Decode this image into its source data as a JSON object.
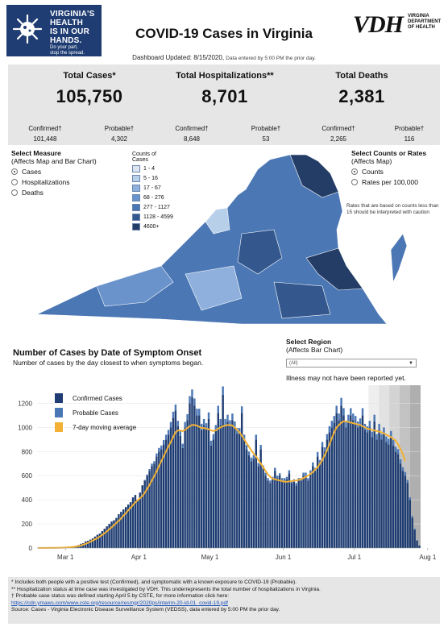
{
  "header": {
    "logo_lines": [
      "VIRGINIA'S",
      "HEALTH",
      "IS IN OUR",
      "HANDS."
    ],
    "logo_sub": [
      "Do your part,",
      "stop the spread."
    ],
    "title": "COVID-19 Cases in Virginia",
    "vdh_big": "VDH",
    "vdh_small": [
      "VIRGINIA",
      "DEPARTMENT",
      "OF HEALTH"
    ],
    "updated": "Dashboard Updated: 8/15/2020,",
    "updated_note": "Data entered by 5:00 PM the prior day."
  },
  "stats": [
    {
      "label": "Total Cases*",
      "value": "105,750",
      "sub": [
        {
          "label": "Confirmed†",
          "value": "101,448"
        },
        {
          "label": "Probable†",
          "value": "4,302"
        }
      ]
    },
    {
      "label": "Total Hospitalizations**",
      "value": "8,701",
      "sub": [
        {
          "label": "Confirmed†",
          "value": "8,648"
        },
        {
          "label": "Probable†",
          "value": "53"
        }
      ]
    },
    {
      "label": "Total Deaths",
      "value": "2,381",
      "sub": [
        {
          "label": "Confirmed†",
          "value": "2,265"
        },
        {
          "label": "Probable†",
          "value": "116"
        }
      ]
    }
  ],
  "measure": {
    "title": "Select Measure",
    "subtitle": "(Affects Map and Bar Chart)",
    "options": [
      "Cases",
      "Hospitalizations",
      "Deaths"
    ],
    "selected": "Cases"
  },
  "map_legend": {
    "title": "Counts of Cases",
    "bins": [
      {
        "label": "1 - 4",
        "color": "#dbe6f2"
      },
      {
        "label": "5 - 16",
        "color": "#b8cfe9"
      },
      {
        "label": "17 - 67",
        "color": "#8fb0dc"
      },
      {
        "label": "68 - 276",
        "color": "#6a93cc"
      },
      {
        "label": "277 - 1127",
        "color": "#4b77b4"
      },
      {
        "label": "1128 - 4599",
        "color": "#34588e"
      },
      {
        "label": "4600+",
        "color": "#243d66"
      }
    ]
  },
  "counts_rates": {
    "title": "Select Counts or Rates",
    "subtitle": "(Affects Map)",
    "options": [
      "Counts",
      "Rates per 100,000"
    ],
    "selected": "Counts",
    "caveat": "Rates that are based on counts less than 15 should be interpreted with caution"
  },
  "chart_section": {
    "title": "Number of Cases by Date of Symptom Onset",
    "subtitle": "Number of cases by the day closest to when symptoms began.",
    "region_title": "Select Region",
    "region_subtitle": "(Affects Bar Chart)",
    "region_value": "(All)",
    "illness_note": "Illness may not have been reported yet."
  },
  "chart_data": {
    "type": "bar",
    "title": "Number of Cases by Date of Symptom Onset",
    "xlabel": "",
    "ylabel": "",
    "ylim": [
      0,
      1350
    ],
    "yticks": [
      0,
      200,
      400,
      600,
      800,
      1000,
      1200
    ],
    "xticks": [
      "Mar 1",
      "Apr 1",
      "May 1",
      "Jun 1",
      "Jul 1",
      "Aug 1"
    ],
    "x_start": "Feb 17",
    "legend": [
      {
        "name": "Confirmed Cases",
        "color": "#1f3d72"
      },
      {
        "name": "Probable Cases",
        "color": "#4b77b4"
      },
      {
        "name": "7-day moving average",
        "color": "#f2b134"
      }
    ],
    "series": [
      {
        "name": "Confirmed Cases",
        "values": [
          2,
          0,
          1,
          2,
          1,
          3,
          2,
          2,
          3,
          5,
          4,
          6,
          8,
          10,
          12,
          15,
          20,
          25,
          35,
          40,
          55,
          60,
          70,
          80,
          95,
          110,
          120,
          140,
          160,
          180,
          200,
          220,
          230,
          250,
          280,
          300,
          320,
          340,
          360,
          380,
          420,
          440,
          400,
          460,
          520,
          560,
          600,
          640,
          680,
          700,
          760,
          800,
          820,
          860,
          900,
          940,
          1000,
          1080,
          1140,
          1010,
          930,
          830,
          1000,
          1060,
          1200,
          1250,
          1180,
          1100,
          1100,
          980,
          1020,
          990,
          1070,
          850,
          900,
          970,
          1120,
          1020,
          1270,
          1020,
          1050,
          1010,
          1060,
          1000,
          950,
          950,
          1120,
          900,
          820,
          770,
          720,
          740,
          900,
          680,
          820,
          660,
          600,
          560,
          540,
          570,
          640,
          580,
          600,
          560,
          560,
          570,
          620,
          540,
          550,
          520,
          560,
          560,
          600,
          600,
          560,
          620,
          680,
          640,
          760,
          700,
          840,
          800,
          900,
          960,
          1000,
          1040,
          1120,
          1060,
          1180,
          1100,
          1000,
          1050,
          1100,
          1060,
          1040,
          1000,
          1020,
          1100,
          980,
          960,
          1000,
          920,
          1050,
          900,
          980,
          900,
          950,
          880,
          860,
          920,
          850,
          800,
          780,
          700,
          640,
          600,
          540,
          400,
          250,
          150,
          60,
          20
        ]
      },
      {
        "name": "Probable Cases",
        "values": [
          0,
          0,
          0,
          0,
          0,
          0,
          0,
          0,
          0,
          0,
          0,
          0,
          0,
          0,
          0,
          0,
          0,
          0,
          0,
          0,
          0,
          0,
          0,
          0,
          0,
          0,
          0,
          0,
          0,
          0,
          0,
          0,
          0,
          0,
          0,
          0,
          0,
          0,
          0,
          0,
          0,
          0,
          0,
          0,
          0,
          5,
          10,
          15,
          20,
          20,
          25,
          30,
          30,
          35,
          40,
          40,
          45,
          50,
          50,
          45,
          40,
          35,
          45,
          50,
          60,
          65,
          60,
          55,
          55,
          50,
          50,
          45,
          55,
          40,
          45,
          50,
          60,
          50,
          70,
          50,
          55,
          50,
          55,
          50,
          45,
          45,
          55,
          40,
          35,
          30,
          30,
          30,
          40,
          25,
          35,
          25,
          25,
          20,
          20,
          20,
          25,
          20,
          20,
          20,
          20,
          20,
          25,
          20,
          20,
          20,
          20,
          20,
          25,
          25,
          20,
          25,
          30,
          25,
          35,
          30,
          40,
          35,
          45,
          50,
          55,
          55,
          60,
          55,
          65,
          60,
          50,
          55,
          60,
          55,
          55,
          50,
          55,
          60,
          50,
          50,
          55,
          45,
          55,
          45,
          50,
          45,
          50,
          45,
          45,
          50,
          45,
          40,
          40,
          35,
          30,
          30,
          25,
          20,
          15,
          10,
          5,
          0
        ]
      },
      {
        "name": "7-day moving average",
        "values": [
          1,
          1,
          1,
          1,
          1,
          2,
          2,
          2,
          2,
          3,
          3,
          4,
          5,
          7,
          8,
          10,
          13,
          17,
          22,
          28,
          35,
          43,
          52,
          62,
          72,
          83,
          95,
          108,
          122,
          138,
          155,
          172,
          190,
          208,
          226,
          246,
          268,
          290,
          312,
          334,
          356,
          378,
          396,
          412,
          432,
          458,
          490,
          524,
          560,
          596,
          636,
          680,
          722,
          762,
          802,
          842,
          880,
          920,
          960,
          975,
          975,
          970,
          980,
          995,
          1010,
          1020,
          1020,
          1015,
          1005,
          995,
          995,
          990,
          985,
          975,
          970,
          975,
          990,
          1000,
          1010,
          1015,
          1020,
          1020,
          1015,
          1000,
          980,
          960,
          930,
          900,
          870,
          840,
          810,
          780,
          760,
          730,
          700,
          670,
          640,
          610,
          590,
          575,
          570,
          565,
          560,
          555,
          550,
          550,
          552,
          555,
          558,
          560,
          565,
          570,
          580,
          590,
          600,
          615,
          630,
          650,
          670,
          700,
          730,
          770,
          810,
          860,
          910,
          960,
          1000,
          1020,
          1040,
          1050,
          1050,
          1045,
          1040,
          1035,
          1030,
          1025,
          1020,
          1010,
          1000,
          990,
          985,
          980,
          975,
          970,
          965,
          960,
          950,
          940,
          930,
          920,
          905,
          890,
          860,
          820,
          780,
          720,
          null,
          null,
          null,
          null,
          null,
          null
        ]
      }
    ],
    "incomplete_shading": true
  },
  "footer": {
    "lines": [
      "* Includes both people with a positive test (Confirmed), and symptomatic with a known exposure to COVID-19 (Probable).",
      "** Hospitalization status at time case was investigated by VDH. This underrepresents the total number of hospitalizations in Virginia.",
      "† Probable case status was defined starting April 5 by CSTE, for more information click here:"
    ],
    "link": "https://cdn.ymaws.com/www.cste.org/resource/resmgr/2020ps/interim-20-id-01_covid-19.pdf",
    "source": "Source:  Cases - Virginia Electronic Disease Surveillance System (VEDSS), data entered by 5:00 PM the prior day."
  }
}
